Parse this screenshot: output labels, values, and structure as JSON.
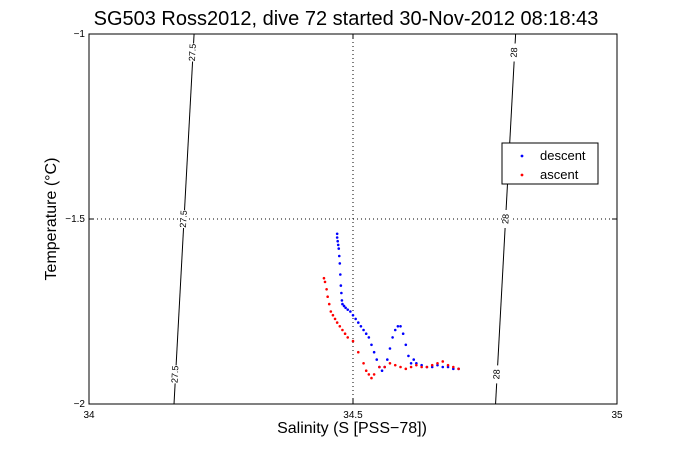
{
  "chart_data": {
    "type": "scatter",
    "title": "SG503 Ross2012, dive 72 started 30-Nov-2012 08:18:43",
    "xlabel": "Salinity (S [PSS−78])",
    "ylabel": "Temperature (°C)",
    "xlim": [
      34,
      35
    ],
    "ylim": [
      -2,
      -1
    ],
    "xticks": [
      34,
      34.5,
      35
    ],
    "xtick_labels": [
      "34",
      "34.5",
      "35"
    ],
    "yticks": [
      -2,
      -1.5,
      -1
    ],
    "ytick_labels": [
      "−2",
      "−1.5",
      "−1"
    ],
    "grid": "dotted",
    "legend_position": "right",
    "series": [
      {
        "name": "descent",
        "color": "#0000ff",
        "points": [
          [
            34.47,
            -1.54
          ],
          [
            34.47,
            -1.55
          ],
          [
            34.471,
            -1.56
          ],
          [
            34.472,
            -1.57
          ],
          [
            34.473,
            -1.58
          ],
          [
            34.474,
            -1.6
          ],
          [
            34.475,
            -1.62
          ],
          [
            34.476,
            -1.65
          ],
          [
            34.477,
            -1.68
          ],
          [
            34.478,
            -1.7
          ],
          [
            34.479,
            -1.72
          ],
          [
            34.48,
            -1.73
          ],
          [
            34.483,
            -1.735
          ],
          [
            34.486,
            -1.74
          ],
          [
            34.49,
            -1.745
          ],
          [
            34.495,
            -1.75
          ],
          [
            34.5,
            -1.76
          ],
          [
            34.505,
            -1.77
          ],
          [
            34.51,
            -1.78
          ],
          [
            34.515,
            -1.79
          ],
          [
            34.52,
            -1.8
          ],
          [
            34.525,
            -1.81
          ],
          [
            34.53,
            -1.82
          ],
          [
            34.535,
            -1.84
          ],
          [
            34.54,
            -1.86
          ],
          [
            34.545,
            -1.88
          ],
          [
            34.55,
            -1.9
          ],
          [
            34.555,
            -1.91
          ],
          [
            34.56,
            -1.9
          ],
          [
            34.565,
            -1.88
          ],
          [
            34.57,
            -1.85
          ],
          [
            34.575,
            -1.82
          ],
          [
            34.58,
            -1.8
          ],
          [
            34.585,
            -1.79
          ],
          [
            34.59,
            -1.79
          ],
          [
            34.595,
            -1.81
          ],
          [
            34.6,
            -1.84
          ],
          [
            34.605,
            -1.87
          ],
          [
            34.61,
            -1.89
          ],
          [
            34.615,
            -1.88
          ],
          [
            34.62,
            -1.89
          ],
          [
            34.63,
            -1.895
          ],
          [
            34.64,
            -1.9
          ],
          [
            34.65,
            -1.9
          ],
          [
            34.66,
            -1.895
          ],
          [
            34.67,
            -1.9
          ],
          [
            34.68,
            -1.9
          ],
          [
            34.69,
            -1.905
          ],
          [
            34.7,
            -1.905
          ]
        ]
      },
      {
        "name": "ascent",
        "color": "#ff0000",
        "points": [
          [
            34.445,
            -1.66
          ],
          [
            34.447,
            -1.67
          ],
          [
            34.45,
            -1.69
          ],
          [
            34.452,
            -1.71
          ],
          [
            34.455,
            -1.73
          ],
          [
            34.458,
            -1.75
          ],
          [
            34.462,
            -1.76
          ],
          [
            34.466,
            -1.77
          ],
          [
            34.47,
            -1.78
          ],
          [
            34.475,
            -1.79
          ],
          [
            34.48,
            -1.8
          ],
          [
            34.485,
            -1.81
          ],
          [
            34.49,
            -1.82
          ],
          [
            34.5,
            -1.83
          ],
          [
            34.51,
            -1.86
          ],
          [
            34.52,
            -1.89
          ],
          [
            34.525,
            -1.91
          ],
          [
            34.53,
            -1.92
          ],
          [
            34.535,
            -1.93
          ],
          [
            34.54,
            -1.92
          ],
          [
            34.55,
            -1.9
          ],
          [
            34.56,
            -1.9
          ],
          [
            34.57,
            -1.89
          ],
          [
            34.58,
            -1.895
          ],
          [
            34.59,
            -1.9
          ],
          [
            34.6,
            -1.905
          ],
          [
            34.61,
            -1.9
          ],
          [
            34.62,
            -1.895
          ],
          [
            34.63,
            -1.9
          ],
          [
            34.64,
            -1.9
          ],
          [
            34.65,
            -1.895
          ],
          [
            34.66,
            -1.89
          ],
          [
            34.67,
            -1.885
          ],
          [
            34.68,
            -1.895
          ],
          [
            34.69,
            -1.9
          ],
          [
            34.7,
            -1.905
          ]
        ]
      }
    ],
    "contours": [
      {
        "label": "27.5",
        "points": [
          [
            34.161,
            -2
          ],
          [
            34.199,
            -1
          ]
        ],
        "label_positions": [
          [
            34.197,
            -1.05
          ],
          [
            34.18,
            -1.5
          ],
          [
            34.164,
            -1.92
          ]
        ]
      },
      {
        "label": "28",
        "points": [
          [
            34.77,
            -2
          ],
          [
            34.808,
            -1
          ]
        ],
        "label_positions": [
          [
            34.806,
            -1.05
          ],
          [
            34.79,
            -1.5
          ],
          [
            34.773,
            -1.92
          ]
        ]
      }
    ]
  }
}
